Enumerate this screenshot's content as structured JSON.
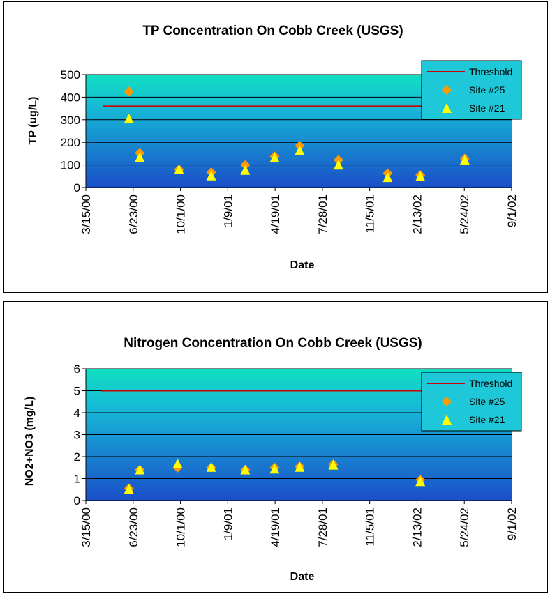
{
  "chart_data": [
    {
      "type": "scatter",
      "title": "TP Concentration On Cobb Creek (USGS)",
      "xlabel": "Date",
      "ylabel": "TP (ug/L)",
      "xlim": [
        "2000-03-15",
        "2002-09-01"
      ],
      "ylim": [
        0,
        500
      ],
      "y_ticks": [
        "0",
        "100",
        "200",
        "300",
        "400",
        "500"
      ],
      "x_ticks": [
        "3/15/00",
        "6/23/00",
        "10/1/00",
        "1/9/01",
        "4/19/01",
        "7/28/01",
        "11/5/01",
        "2/13/02",
        "5/24/02",
        "9/1/02"
      ],
      "grid": true,
      "legend_position": "top-right",
      "threshold": {
        "name": "Threshold",
        "x": [
          "2000-04-20",
          "2002-07-15"
        ],
        "y": 360,
        "color": "#cc0000"
      },
      "series": [
        {
          "name": "Site #25",
          "marker": "diamond",
          "color": "#ff9900",
          "points": [
            [
              "2000-06-14",
              425
            ],
            [
              "2000-07-07",
              153
            ],
            [
              "2000-09-28",
              80
            ],
            [
              "2000-12-05",
              68
            ],
            [
              "2001-02-15",
              100
            ],
            [
              "2001-04-18",
              138
            ],
            [
              "2001-06-10",
              185
            ],
            [
              "2001-08-31",
              122
            ],
            [
              "2001-12-13",
              63
            ],
            [
              "2002-02-20",
              55
            ],
            [
              "2002-05-25",
              128
            ]
          ]
        },
        {
          "name": "Site #21",
          "marker": "triangle",
          "color": "#ffff00",
          "points": [
            [
              "2000-06-14",
              303
            ],
            [
              "2000-07-07",
              132
            ],
            [
              "2000-09-28",
              78
            ],
            [
              "2000-12-05",
              50
            ],
            [
              "2001-02-15",
              75
            ],
            [
              "2001-04-18",
              130
            ],
            [
              "2001-06-10",
              162
            ],
            [
              "2001-08-31",
              98
            ],
            [
              "2001-12-13",
              43
            ],
            [
              "2002-02-20",
              47
            ],
            [
              "2002-05-25",
              120
            ]
          ]
        }
      ]
    },
    {
      "type": "scatter",
      "title": "Nitrogen Concentration On Cobb Creek (USGS)",
      "xlabel": "Date",
      "ylabel": "NO2+NO3 (mg/L)",
      "xlim": [
        "2000-03-15",
        "2002-09-01"
      ],
      "ylim": [
        0,
        6
      ],
      "y_ticks": [
        "0",
        "1",
        "2",
        "3",
        "4",
        "5",
        "6"
      ],
      "x_ticks": [
        "3/15/00",
        "6/23/00",
        "10/1/00",
        "1/9/01",
        "4/19/01",
        "7/28/01",
        "11/5/01",
        "2/13/02",
        "5/24/02",
        "9/1/02"
      ],
      "grid": true,
      "legend_position": "top-right",
      "threshold": {
        "name": "Threshold",
        "x": [
          "2000-04-15",
          "2002-07-15"
        ],
        "y": 5,
        "color": "#cc0000"
      },
      "series": [
        {
          "name": "Site #25",
          "marker": "diamond",
          "color": "#ff9900",
          "points": [
            [
              "2000-06-14",
              0.55
            ],
            [
              "2000-07-07",
              1.4
            ],
            [
              "2000-09-25",
              1.5
            ],
            [
              "2000-12-05",
              1.5
            ],
            [
              "2001-02-15",
              1.4
            ],
            [
              "2001-04-18",
              1.5
            ],
            [
              "2001-06-10",
              1.55
            ],
            [
              "2001-08-20",
              1.65
            ],
            [
              "2002-02-20",
              0.95
            ]
          ]
        },
        {
          "name": "Site #21",
          "marker": "triangle",
          "color": "#ffff00",
          "points": [
            [
              "2000-06-14",
              0.5
            ],
            [
              "2000-07-07",
              1.38
            ],
            [
              "2000-09-25",
              1.65
            ],
            [
              "2000-12-05",
              1.5
            ],
            [
              "2001-02-15",
              1.38
            ],
            [
              "2001-04-18",
              1.42
            ],
            [
              "2001-06-10",
              1.5
            ],
            [
              "2001-08-20",
              1.6
            ],
            [
              "2002-02-20",
              0.85
            ]
          ]
        }
      ]
    }
  ]
}
